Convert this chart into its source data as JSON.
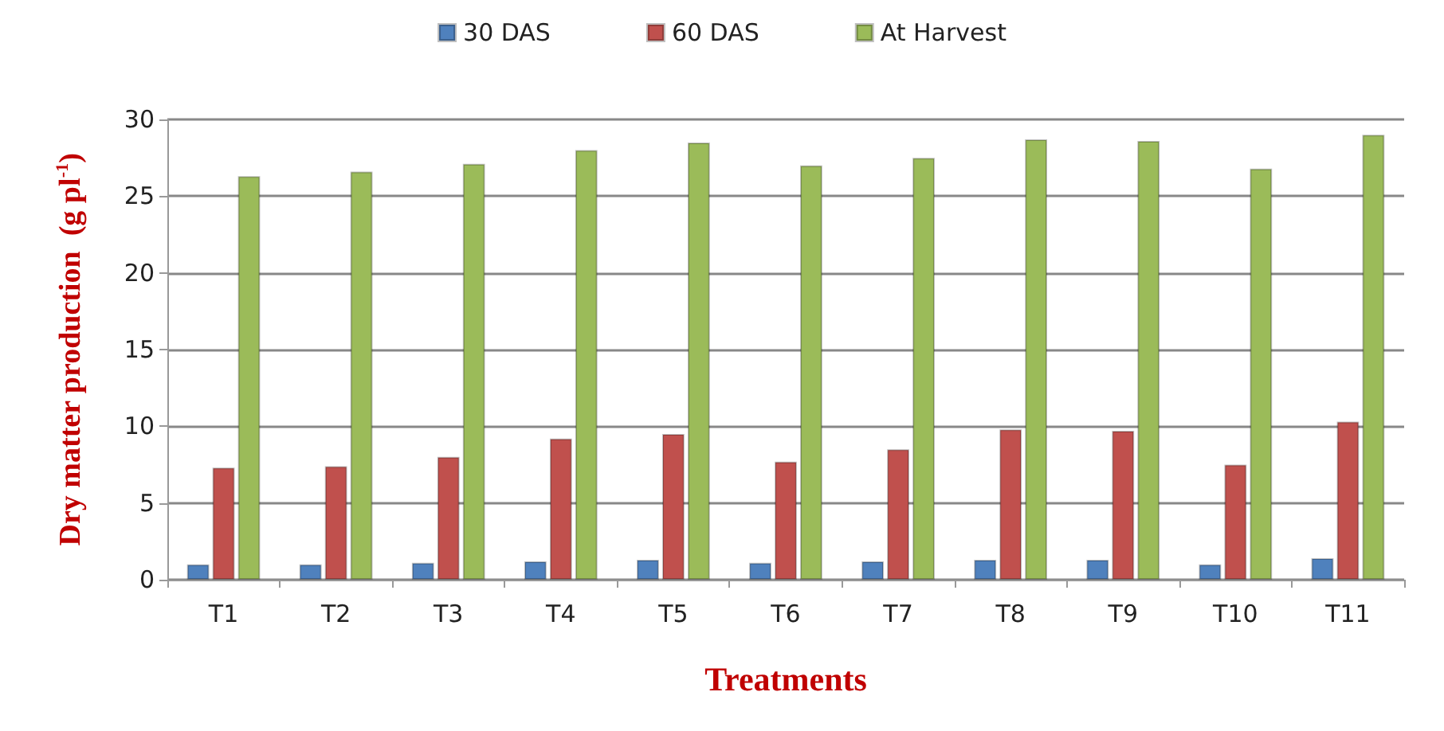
{
  "chart_data": {
    "type": "bar",
    "xlabel": "Treatments",
    "ylabel": "Dry matter production  (g pl$^{-1}$)",
    "categories": [
      "T1",
      "T2",
      "T3",
      "T4",
      "T5",
      "T6",
      "T7",
      "T8",
      "T9",
      "T10",
      "T11"
    ],
    "series": [
      {
        "name": "30 DAS",
        "color": "#4f81bd",
        "values": [
          1.0,
          1.0,
          1.1,
          1.2,
          1.3,
          1.1,
          1.2,
          1.3,
          1.3,
          1.0,
          1.4
        ]
      },
      {
        "name": "60 DAS",
        "color": "#c0504d",
        "values": [
          7.3,
          7.4,
          8.0,
          9.2,
          9.5,
          7.7,
          8.5,
          9.8,
          9.7,
          7.5,
          10.3
        ]
      },
      {
        "name": "At Harvest",
        "color": "#9bbb59",
        "values": [
          26.3,
          26.6,
          27.1,
          28.0,
          28.5,
          27.0,
          27.5,
          28.7,
          28.6,
          26.8,
          29.0
        ]
      }
    ],
    "ylim": [
      0,
      30
    ],
    "yticks": [
      0,
      5,
      10,
      15,
      20,
      25,
      30
    ],
    "grid": "y",
    "legend": "top"
  }
}
